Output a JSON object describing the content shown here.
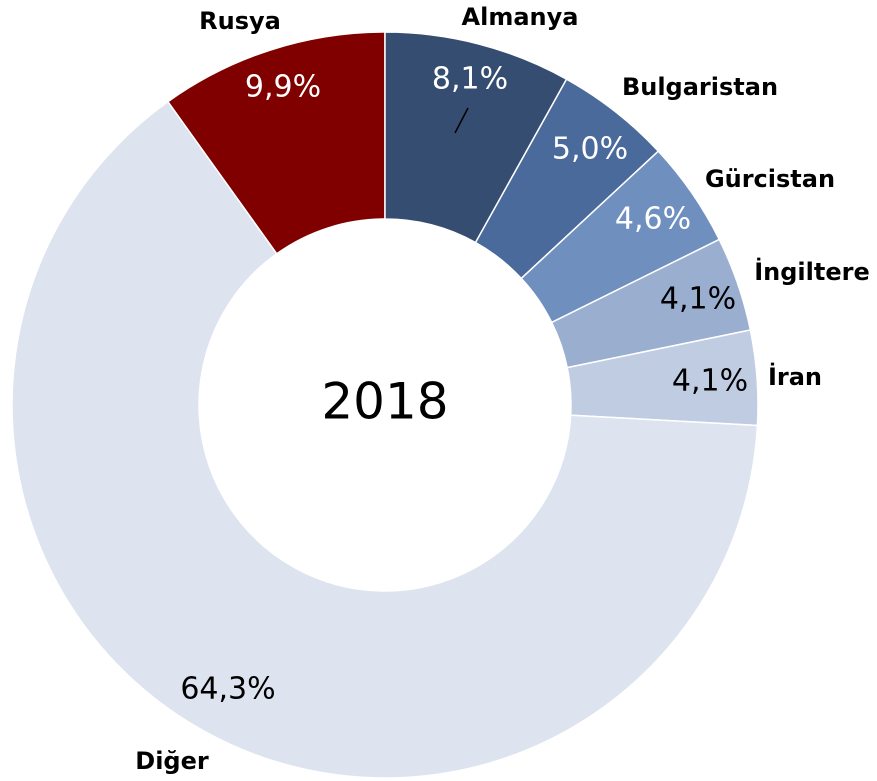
{
  "chart_data": {
    "type": "donut",
    "title": "2018",
    "categories": [
      "Rusya",
      "Almanya",
      "Bulgaristan",
      "Gürcistan",
      "İngiltere",
      "İran",
      "Diğer"
    ],
    "values": [
      9.9,
      8.1,
      5.0,
      4.6,
      4.1,
      4.1,
      64.3
    ],
    "value_labels": [
      "9,9%",
      "8,1%",
      "5,0%",
      "4,6%",
      "4,1%",
      "4,1%",
      "64,3%"
    ],
    "colors": [
      "#800000",
      "#354d70",
      "#4a6a9c",
      "#6f8fbf",
      "#9aafd0",
      "#bfcce2",
      "#dde3ef"
    ]
  }
}
